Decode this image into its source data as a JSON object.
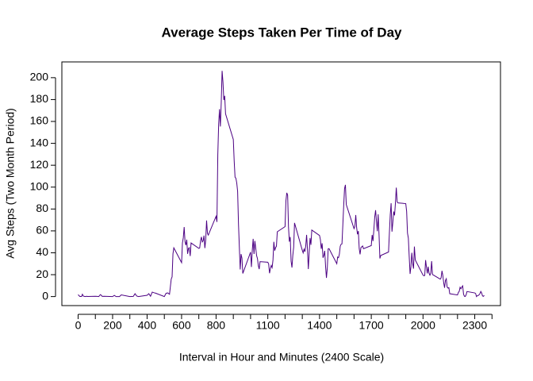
{
  "chart_data": {
    "type": "line",
    "title": "Average Steps Taken Per Time of Day",
    "x_label": "Interval in Hour and Minutes (2400 Scale)",
    "y_label": "Avg Steps (Two Month Period)",
    "x": [
      0,
      10,
      20,
      25,
      30,
      40,
      50,
      55,
      100,
      110,
      120,
      125,
      130,
      140,
      150,
      200,
      210,
      220,
      230,
      240,
      250,
      300,
      320,
      330,
      340,
      350,
      400,
      410,
      420,
      430,
      440,
      450,
      500,
      510,
      520,
      530,
      540,
      545,
      550,
      555,
      600,
      605,
      610,
      615,
      620,
      625,
      630,
      635,
      640,
      645,
      650,
      655,
      700,
      705,
      710,
      715,
      720,
      725,
      730,
      735,
      740,
      745,
      750,
      755,
      800,
      805,
      810,
      815,
      820,
      825,
      830,
      835,
      840,
      845,
      850,
      855,
      900,
      905,
      910,
      915,
      920,
      925,
      930,
      935,
      940,
      945,
      950,
      955,
      1000,
      1005,
      1010,
      1015,
      1020,
      1025,
      1030,
      1035,
      1040,
      1045,
      1050,
      1055,
      1100,
      1105,
      1110,
      1115,
      1120,
      1125,
      1130,
      1135,
      1140,
      1145,
      1150,
      1155,
      1200,
      1205,
      1210,
      1215,
      1220,
      1225,
      1230,
      1235,
      1240,
      1245,
      1250,
      1255,
      1300,
      1305,
      1310,
      1315,
      1320,
      1325,
      1330,
      1335,
      1340,
      1345,
      1350,
      1355,
      1400,
      1405,
      1410,
      1415,
      1420,
      1425,
      1430,
      1435,
      1440,
      1445,
      1450,
      1455,
      1500,
      1505,
      1510,
      1515,
      1520,
      1525,
      1530,
      1535,
      1540,
      1545,
      1550,
      1555,
      1600,
      1605,
      1610,
      1615,
      1620,
      1625,
      1630,
      1635,
      1640,
      1645,
      1650,
      1655,
      1700,
      1705,
      1710,
      1715,
      1720,
      1725,
      1730,
      1735,
      1740,
      1745,
      1750,
      1755,
      1800,
      1805,
      1810,
      1815,
      1820,
      1825,
      1830,
      1835,
      1840,
      1845,
      1850,
      1855,
      1900,
      1905,
      1910,
      1915,
      1920,
      1925,
      1930,
      1935,
      1940,
      1945,
      1950,
      1955,
      2000,
      2005,
      2010,
      2015,
      2020,
      2025,
      2030,
      2035,
      2040,
      2045,
      2050,
      2055,
      2100,
      2105,
      2110,
      2115,
      2120,
      2125,
      2130,
      2135,
      2140,
      2145,
      2150,
      2155,
      2200,
      2205,
      2210,
      2215,
      2220,
      2225,
      2230,
      2235,
      2240,
      2245,
      2250,
      2255,
      2300,
      2305,
      2310,
      2315,
      2320,
      2325,
      2330,
      2335,
      2340,
      2345,
      2350,
      2355
    ],
    "series": [
      {
        "name": "Avg Steps",
        "color": "#4b0082",
        "values": [
          1.7,
          0.1,
          0.1,
          2.1,
          0.5,
          0,
          0.3,
          0.1,
          0.3,
          0.2,
          0,
          1.1,
          1.8,
          0.2,
          0.3,
          0,
          1.1,
          0,
          0,
          0,
          1.5,
          0,
          0.2,
          2.6,
          0.5,
          0,
          1.2,
          2.6,
          0.3,
          4.1,
          3.5,
          3.1,
          0,
          3.0,
          3.3,
          2.1,
          16,
          18,
          39,
          44.5,
          31,
          49,
          53.8,
          63.5,
          50,
          47,
          52,
          39,
          44,
          44.7,
          37,
          49,
          44,
          44.5,
          51,
          54.5,
          49.9,
          50.9,
          55.7,
          44.3,
          52,
          69.5,
          57.8,
          56.2,
          73.4,
          68.2,
          129.4,
          157.5,
          171.2,
          155.4,
          177.3,
          206.2,
          195.9,
          179.6,
          183.4,
          167,
          143.5,
          124,
          109.1,
          108.1,
          103.7,
          96,
          66.2,
          45.2,
          24.8,
          38.8,
          35,
          21.1,
          40.6,
          27,
          42.4,
          52.7,
          38.9,
          50.8,
          44.3,
          37.4,
          34.7,
          28.3,
          25.1,
          31.9,
          31.4,
          29.7,
          21.3,
          25.5,
          28.4,
          26.5,
          33.4,
          50,
          42,
          44.6,
          46,
          59.2,
          63.9,
          87.5,
          94.8,
          92.8,
          63.4,
          50.2,
          54.5,
          32.4,
          26.5,
          37.7,
          45.1,
          67.3,
          42.3,
          39.9,
          43.3,
          41,
          46.2,
          56.4,
          42.8,
          25.1,
          40,
          53.5,
          47.3,
          60.8,
          55.8,
          52,
          43.6,
          48.7,
          35.5,
          37.5,
          41.8,
          27.5,
          17.1,
          26.1,
          43.6,
          43.8,
          30,
          36.1,
          35.5,
          38.8,
          46,
          47.8,
          48.1,
          65.3,
          82.9,
          98.7,
          102.1,
          84,
          62.1,
          64.1,
          74.5,
          63.2,
          56.9,
          59.8,
          43.9,
          38.6,
          44.7,
          45.5,
          46.2,
          43.7,
          46.6,
          56.3,
          50.7,
          61.2,
          72.7,
          78.9,
          68.9,
          59.7,
          75.1,
          56.5,
          34.8,
          37.5,
          40.7,
          58,
          74.7,
          85.3,
          59.3,
          67.8,
          77.7,
          74.2,
          85.3,
          99.5,
          86.6,
          85.6,
          84.9,
          77.8,
          58,
          53.4,
          36.3,
          20.7,
          27.4,
          40,
          30.2,
          25.5,
          45.7,
          33.5,
          19.6,
          19,
          19.3,
          33.3,
          26.8,
          21.2,
          27.3,
          21.3,
          19.5,
          21.3,
          32.3,
          20.2,
          15.9,
          17.2,
          23.5,
          19.2,
          12.5,
          8,
          14.7,
          16.3,
          8.7,
          7.8,
          8.1,
          2.6,
          1.5,
          3.7,
          4.8,
          8.5,
          7.1,
          8.7,
          9.8,
          2.2,
          0.3,
          0.1,
          1.6,
          4.6,
          3.3,
          2.8,
          0,
          0.8,
          1,
          1.6,
          2.6,
          4.7,
          3.3,
          0.6,
          0.2,
          1.1
        ]
      }
    ],
    "xlim": [
      -94.2,
      2449.2
    ],
    "ylim": [
      -8.25,
      214.4
    ],
    "xticks": [
      0,
      200,
      400,
      600,
      800,
      1100,
      1400,
      1700,
      2000,
      2300
    ],
    "xminor_ticks": [
      100,
      300,
      500,
      700,
      900,
      1000,
      1200,
      1300,
      1500,
      1600,
      1800,
      1900,
      2100,
      2200,
      2400
    ],
    "yticks": [
      0,
      20,
      40,
      60,
      80,
      100,
      120,
      140,
      160,
      180,
      200
    ],
    "grid": false
  }
}
